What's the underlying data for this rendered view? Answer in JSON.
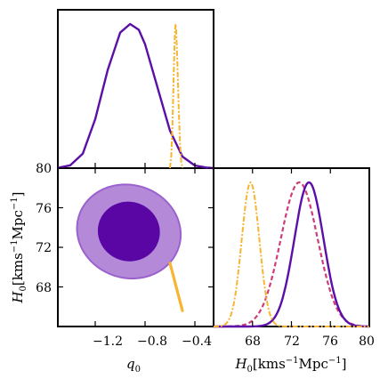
{
  "chart_data": [
    {
      "panel": "q0-marginal",
      "type": "line",
      "xlim": [
        -1.5,
        -0.25
      ],
      "series": [
        {
          "values": [
            [
              -1.5,
              0.002
            ],
            [
              -1.4,
              0.02
            ],
            [
              -1.3,
              0.1
            ],
            [
              -1.2,
              0.34
            ],
            [
              -1.1,
              0.68
            ],
            [
              -1.0,
              0.94
            ],
            [
              -0.92,
              1.0
            ],
            [
              -0.85,
              0.96
            ],
            [
              -0.8,
              0.86
            ],
            [
              -0.7,
              0.56
            ],
            [
              -0.6,
              0.26
            ],
            [
              -0.5,
              0.08
            ],
            [
              -0.4,
              0.018
            ],
            [
              -0.3,
              0.003
            ],
            [
              -0.25,
              0.0
            ]
          ]
        },
        {
          "values": [
            [
              -0.6,
              0.0
            ],
            [
              -0.59,
              0.08
            ],
            [
              -0.58,
              0.3
            ],
            [
              -0.57,
              0.65
            ],
            [
              -0.56,
              0.95
            ],
            [
              -0.555,
              1.0
            ],
            [
              -0.55,
              0.95
            ],
            [
              -0.54,
              0.72
            ],
            [
              -0.53,
              0.42
            ],
            [
              -0.52,
              0.18
            ],
            [
              -0.51,
              0.05
            ],
            [
              -0.5,
              0.0
            ]
          ]
        }
      ]
    },
    {
      "panel": "q0-H0-contours",
      "type": "scatter",
      "xlim": [
        -1.5,
        -0.25
      ],
      "ylim": [
        64,
        80
      ],
      "yticks": [
        "68",
        "72",
        "76",
        "80"
      ],
      "xticks": [
        "−1.2",
        "−0.8",
        "−0.4"
      ],
      "ylabel": "H_0[kms^{-1}Mpc^{-1}]",
      "xlabel": "q_0",
      "contours": [
        {
          "level": "outer",
          "center": [
            -0.93,
            73.6
          ],
          "rx": 0.42,
          "ry": 4.7,
          "tilt_deg": 17
        },
        {
          "level": "inner",
          "center": [
            -0.93,
            73.6
          ],
          "rx": 0.25,
          "ry": 3.0,
          "tilt_deg": 17
        }
      ],
      "narrow_band": [
        [
          -0.6,
          70.4
        ],
        [
          -0.5,
          65.6
        ]
      ]
    },
    {
      "panel": "H0-marginal",
      "type": "line",
      "xlim": [
        64,
        80
      ],
      "xticks": [
        "68",
        "72",
        "76",
        "80"
      ],
      "xlabel": "H_0[kms^{-1}Mpc^{-1}]",
      "series": [
        {
          "center": 73.8,
          "sigma": 1.5,
          "style": "solid"
        },
        {
          "center": 67.8,
          "sigma": 0.9,
          "style": "dashdot"
        },
        {
          "center": 72.8,
          "sigma": 1.9,
          "style": "dashed"
        }
      ]
    }
  ],
  "labels": {
    "yticks_left": [
      "68",
      "72",
      "76",
      "80"
    ],
    "xticks_left": [
      "−1.2",
      "−0.8",
      "−0.4"
    ],
    "xticks_right": [
      "68",
      "72",
      "76",
      "80"
    ],
    "ylabel_base": "H",
    "ylabel_sub": "0",
    "ylabel_unit": "[kms",
    "ylabel_exp": "−1",
    "ylabel_tail": "Mpc",
    "ylabel_exp2": "−1",
    "ylabel_close": "]",
    "xlabel_left_base": "q",
    "xlabel_left_sub": "0"
  },
  "colors": {
    "purple": "#5b0fa6",
    "purple_fill_outer": "#b48ad8",
    "purple_fill_inner": "#5a06a4",
    "orange": "#f7b531",
    "magenta": "#cc3d79"
  }
}
